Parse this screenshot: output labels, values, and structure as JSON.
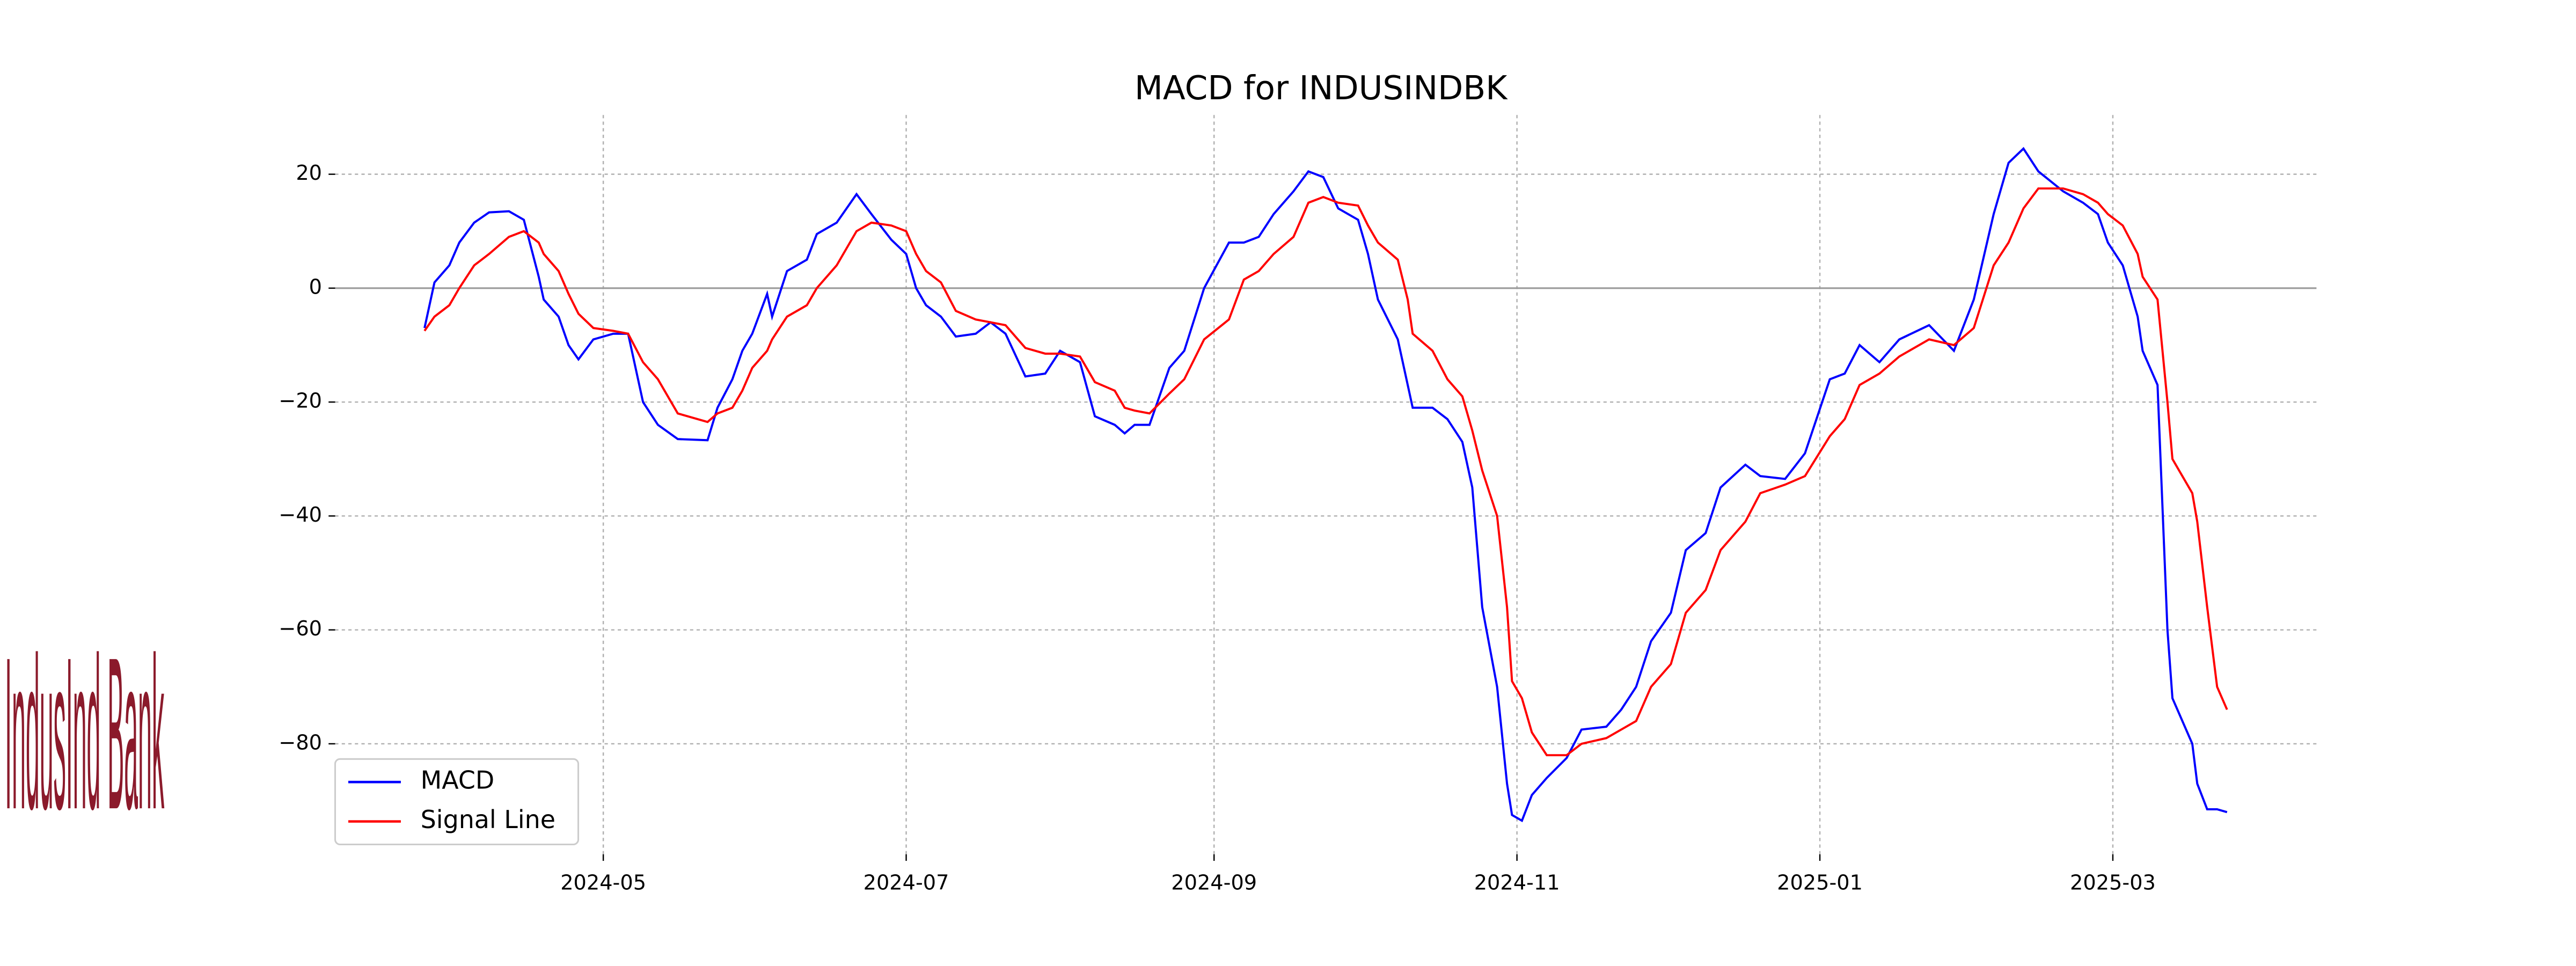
{
  "logo_text": "IndusInd Bank",
  "chart_data": {
    "type": "line",
    "title": "MACD for INDUSINDBK",
    "x": [
      "2024-03-26",
      "2024-03-28",
      "2024-03-31",
      "2024-04-02",
      "2024-04-05",
      "2024-04-08",
      "2024-04-12",
      "2024-04-15",
      "2024-04-18",
      "2024-04-19",
      "2024-04-22",
      "2024-04-24",
      "2024-04-26",
      "2024-04-29",
      "2024-05-03",
      "2024-05-06",
      "2024-05-09",
      "2024-05-12",
      "2024-05-16",
      "2024-05-22",
      "2024-05-24",
      "2024-05-27",
      "2024-05-29",
      "2024-05-31",
      "2024-06-03",
      "2024-06-04",
      "2024-06-07",
      "2024-06-11",
      "2024-06-13",
      "2024-06-17",
      "2024-06-21",
      "2024-06-24",
      "2024-06-28",
      "2024-07-01",
      "2024-07-03",
      "2024-07-05",
      "2024-07-08",
      "2024-07-11",
      "2024-07-15",
      "2024-07-18",
      "2024-07-21",
      "2024-07-25",
      "2024-07-29",
      "2024-08-01",
      "2024-08-05",
      "2024-08-08",
      "2024-08-12",
      "2024-08-14",
      "2024-08-16",
      "2024-08-19",
      "2024-08-23",
      "2024-08-26",
      "2024-08-30",
      "2024-09-04",
      "2024-09-07",
      "2024-09-10",
      "2024-09-13",
      "2024-09-17",
      "2024-09-20",
      "2024-09-23",
      "2024-09-26",
      "2024-09-30",
      "2024-10-02",
      "2024-10-04",
      "2024-10-08",
      "2024-10-10",
      "2024-10-11",
      "2024-10-15",
      "2024-10-18",
      "2024-10-21",
      "2024-10-23",
      "2024-10-25",
      "2024-10-28",
      "2024-10-30",
      "2024-10-31",
      "2024-11-02",
      "2024-11-04",
      "2024-11-07",
      "2024-11-11",
      "2024-11-14",
      "2024-11-19",
      "2024-11-22",
      "2024-11-25",
      "2024-11-28",
      "2024-12-02",
      "2024-12-05",
      "2024-12-09",
      "2024-12-12",
      "2024-12-17",
      "2024-12-20",
      "2024-12-25",
      "2024-12-29",
      "2025-01-03",
      "2025-01-06",
      "2025-01-09",
      "2025-01-13",
      "2025-01-17",
      "2025-01-23",
      "2025-01-28",
      "2025-02-01",
      "2025-02-05",
      "2025-02-08",
      "2025-02-11",
      "2025-02-14",
      "2025-02-19",
      "2025-02-23",
      "2025-02-26",
      "2025-02-28",
      "2025-03-03",
      "2025-03-06",
      "2025-03-07",
      "2025-03-10",
      "2025-03-12",
      "2025-03-13",
      "2025-03-17",
      "2025-03-18",
      "2025-03-20",
      "2025-03-22",
      "2025-03-24"
    ],
    "series": [
      {
        "name": "MACD",
        "color": "#0000ff",
        "values": [
          -7,
          1,
          4,
          8,
          11.5,
          13.3,
          13.5,
          12,
          2,
          -2,
          -5,
          -10,
          -12.5,
          -9,
          -8,
          -8,
          -20,
          -24,
          -26.5,
          -26.7,
          -21,
          -16,
          -11,
          -8,
          -1,
          -5,
          3,
          5,
          9.5,
          11.5,
          16.5,
          13,
          8.5,
          6,
          0,
          -3,
          -5,
          -8.5,
          -8,
          -6,
          -8,
          -15.5,
          -15,
          -11,
          -13,
          -22.5,
          -24,
          -25.5,
          -24,
          -24,
          -14,
          -11,
          0,
          8,
          8,
          9,
          13,
          17,
          20.5,
          19.5,
          14,
          12,
          6,
          -2,
          -9,
          -17,
          -21,
          -21,
          -23,
          -27,
          -35,
          -56,
          -70,
          -87,
          -92.5,
          -93.5,
          -89,
          -86,
          -82.5,
          -77.5,
          -77,
          -74,
          -70,
          -62,
          -57,
          -46,
          -43,
          -35,
          -31,
          -33,
          -33.5,
          -29,
          -16,
          -15,
          -10,
          -13,
          -9,
          -6.5,
          -11,
          -2,
          13,
          22,
          24.5,
          20.5,
          17,
          15,
          13,
          8,
          4,
          -5,
          -11,
          -17,
          -60,
          -72,
          -80,
          -87,
          -91.5,
          -91.5,
          -92
        ]
      },
      {
        "name": "Signal Line",
        "color": "#ff0000",
        "values": [
          -7.5,
          -5,
          -3,
          0,
          4,
          6,
          9,
          10,
          8,
          6,
          3,
          -1,
          -4.5,
          -7,
          -7.5,
          -8,
          -13,
          -16,
          -22,
          -23.5,
          -22,
          -21,
          -18,
          -14,
          -11,
          -9,
          -5,
          -3,
          0,
          4,
          10,
          11.5,
          11,
          10,
          6,
          3,
          1,
          -4,
          -5.5,
          -6,
          -6.5,
          -10.5,
          -11.5,
          -11.5,
          -12,
          -16.5,
          -18,
          -21,
          -21.5,
          -22,
          -18.5,
          -16,
          -9,
          -5.5,
          1.5,
          3,
          6,
          9,
          15,
          16,
          15,
          14.5,
          11,
          8,
          5,
          -2,
          -8,
          -11,
          -16,
          -19,
          -25,
          -32,
          -40,
          -56,
          -69,
          -72,
          -78,
          -82,
          -82,
          -80,
          -79,
          -77.5,
          -76,
          -70,
          -66,
          -57,
          -53,
          -46,
          -41,
          -36,
          -34.5,
          -33,
          -26,
          -23,
          -17,
          -15,
          -12,
          -9,
          -10,
          -7,
          4,
          8,
          14,
          17.5,
          17.5,
          16.5,
          15,
          13,
          11,
          6,
          2,
          -2,
          -20,
          -30,
          -36,
          -41,
          -56,
          -70,
          -74
        ]
      }
    ],
    "xlim": [
      "2024-03-08",
      "2025-04-11"
    ],
    "xticks": [
      {
        "value": "2024-05-01",
        "label": "2024-05"
      },
      {
        "value": "2024-07-01",
        "label": "2024-07"
      },
      {
        "value": "2024-09-01",
        "label": "2024-09"
      },
      {
        "value": "2024-11-01",
        "label": "2024-11"
      },
      {
        "value": "2025-01-01",
        "label": "2025-01"
      },
      {
        "value": "2025-03-01",
        "label": "2025-03"
      }
    ],
    "ylim": [
      -99.4,
      30.4
    ],
    "yticks": [
      {
        "value": -80,
        "label": "−80"
      },
      {
        "value": -60,
        "label": "−60"
      },
      {
        "value": -40,
        "label": "−40"
      },
      {
        "value": -20,
        "label": "−20"
      },
      0,
      20
    ],
    "grid": true,
    "zero_line": true,
    "legend": "lower left"
  }
}
